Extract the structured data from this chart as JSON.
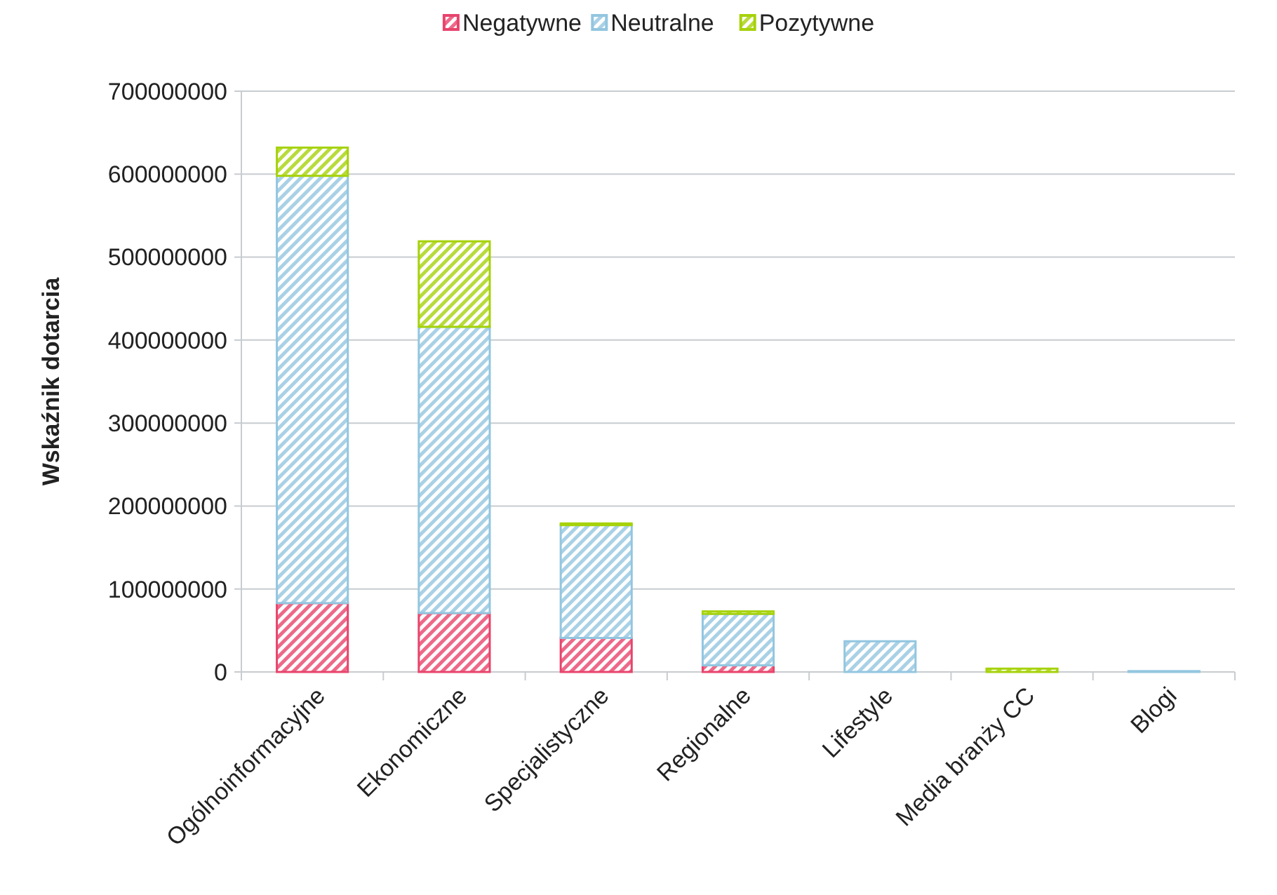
{
  "chart_data": {
    "type": "bar",
    "stacked": true,
    "ylabel": "Wskaźnik dotarcia",
    "categories": [
      "Ogólnoinformacyjne",
      "Ekonomiczne",
      "Specjalistyczne",
      "Regionalne",
      "Lifestyle",
      "Media branży CC",
      "Blogi"
    ],
    "series": [
      {
        "name": "Negatywne",
        "color": "#e8446c",
        "values": [
          83000000,
          71000000,
          41000000,
          8000000,
          0,
          0,
          0
        ]
      },
      {
        "name": "Neutralne",
        "color": "#93c6e0",
        "values": [
          515000000,
          345000000,
          136000000,
          62000000,
          37000000,
          null,
          1000000
        ]
      },
      {
        "name": "Pozytywne",
        "color": "#a6d20a",
        "values": [
          34000000,
          103000000,
          2000000,
          3000000,
          0,
          4000000,
          0
        ]
      }
    ],
    "ylim": [
      0,
      700000000
    ],
    "yticks": [
      0,
      100000000,
      200000000,
      300000000,
      400000000,
      500000000,
      600000000,
      700000000
    ],
    "grid": "y",
    "legend": "top"
  }
}
